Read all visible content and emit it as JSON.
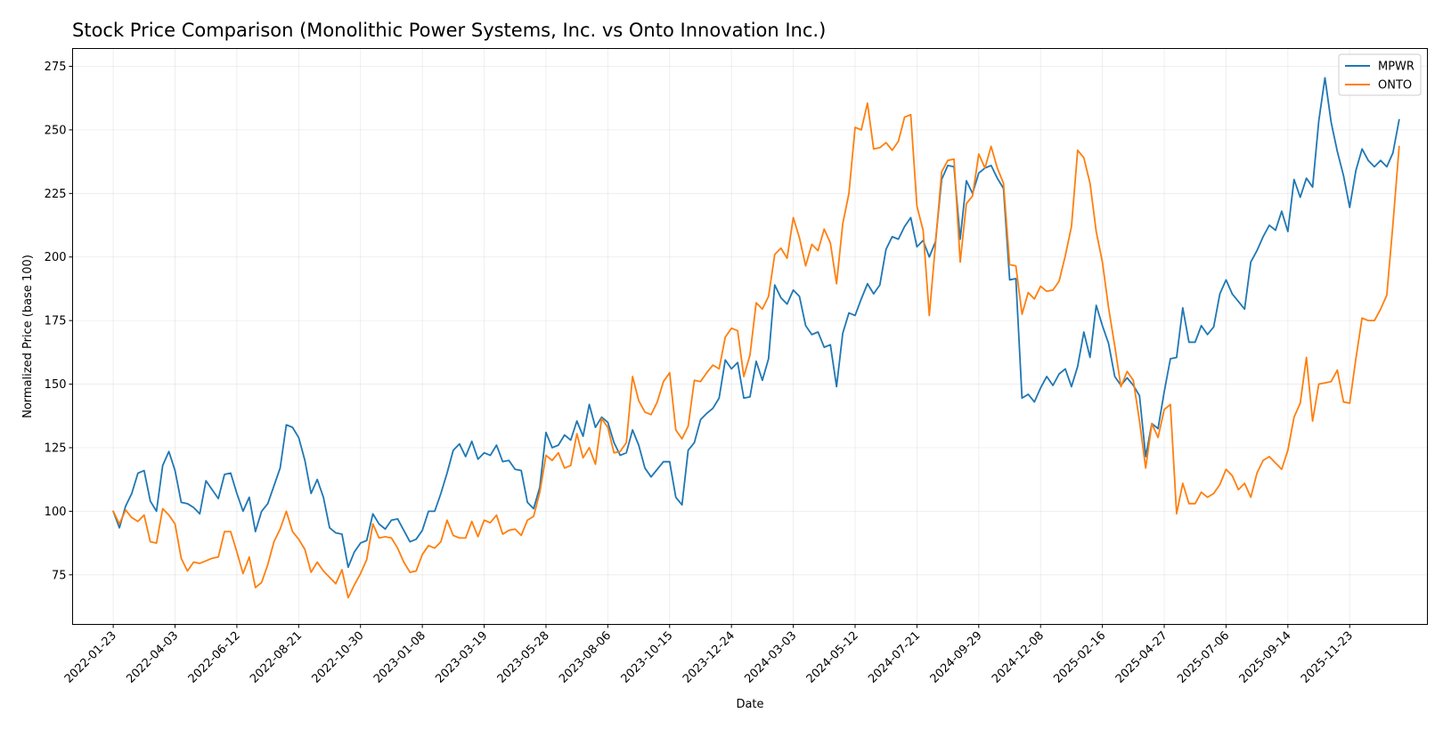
{
  "chart_data": {
    "type": "line",
    "title": "Stock Price Comparison (Monolithic Power Systems, Inc. vs Onto Innovation Inc.)",
    "xlabel": "Date",
    "ylabel": "Normalized Price (base 100)",
    "xlim": [
      "2021-12-08",
      "2026-02-19"
    ],
    "ylim": [
      55.5,
      282
    ],
    "grid": true,
    "legend_position": "top-right",
    "x_ticks": [
      "2022-01-23",
      "2022-04-03",
      "2022-06-12",
      "2022-08-21",
      "2022-10-30",
      "2023-01-08",
      "2023-03-19",
      "2023-05-28",
      "2023-08-06",
      "2023-10-15",
      "2023-12-24",
      "2024-03-03",
      "2024-05-12",
      "2024-07-21",
      "2024-09-29",
      "2024-12-08",
      "2025-02-16",
      "2025-04-27",
      "2025-07-06",
      "2025-09-14",
      "2025-11-23"
    ],
    "y_ticks": [
      75,
      100,
      125,
      150,
      175,
      200,
      225,
      250,
      275
    ],
    "start_date": "2022-01-23",
    "step_days": 7,
    "series": [
      {
        "name": "MPWR",
        "color": "#1f77b4",
        "values": [
          100,
          93.5,
          102,
          107,
          115,
          116,
          104,
          100,
          118,
          123.5,
          116,
          103.5,
          103,
          101.5,
          99,
          112,
          108.5,
          105,
          114.5,
          115,
          107,
          100,
          105.5,
          92,
          100,
          103,
          110,
          117,
          134,
          133,
          129,
          120,
          107,
          112.5,
          105.5,
          93.5,
          91.5,
          91,
          78,
          84,
          87.5,
          88.5,
          99,
          95,
          93,
          96.5,
          97,
          92.5,
          88,
          89,
          92.5,
          100,
          100,
          107,
          115,
          124,
          126.5,
          121.5,
          127.5,
          120.5,
          123,
          122,
          126,
          119.5,
          120,
          116.5,
          116,
          103.5,
          101,
          109.5,
          131,
          125,
          126,
          130,
          128,
          135.5,
          129.5,
          142,
          133,
          137,
          135,
          127,
          122,
          123,
          132,
          126,
          117,
          113.5,
          116.5,
          119.5,
          119.5,
          105.5,
          102.5,
          124,
          127,
          136,
          138.5,
          140.5,
          144.5,
          159.5,
          156,
          158.5,
          144.5,
          145,
          159,
          151.5,
          160,
          189,
          184,
          181.5,
          187,
          184.5,
          173,
          169.5,
          170.5,
          164.5,
          165.5,
          149,
          170,
          178,
          177,
          183.5,
          189.5,
          185.5,
          189,
          203,
          208,
          207,
          212,
          215.5,
          204,
          206.5,
          200,
          206,
          230.5,
          236,
          235.5,
          207,
          230,
          225,
          233,
          235,
          236,
          231,
          227,
          191,
          191.5,
          144.5,
          146,
          143,
          148.5,
          153,
          149.5,
          154,
          156,
          149,
          157,
          170.5,
          160.5,
          181,
          173,
          166,
          153,
          149.5,
          152.5,
          149.5,
          145.5,
          121.5,
          134.5,
          132.5,
          147,
          160,
          160.5,
          180,
          166.5,
          166.5,
          173,
          169.5,
          172.5,
          185.5,
          191,
          185.5,
          182.5,
          179.5,
          198,
          202.5,
          208,
          212.5,
          210.5,
          218,
          210,
          230.5,
          223.5,
          231,
          227.5,
          253.5,
          270.5,
          253,
          241.5,
          232,
          219.5,
          234,
          242.5,
          238,
          235.5,
          238,
          235.5,
          241,
          254
        ]
      },
      {
        "name": "ONTO",
        "color": "#ff7f0e",
        "values": [
          100,
          95,
          100.5,
          97.5,
          96,
          98.5,
          88,
          87.5,
          101,
          98.5,
          95,
          81.5,
          76.5,
          80,
          79.5,
          80.5,
          81.5,
          82,
          92,
          92,
          84,
          75.5,
          82,
          70,
          72,
          79,
          88,
          93,
          100,
          92,
          89,
          85,
          76,
          80,
          76.5,
          74,
          71.5,
          77,
          66,
          71,
          75.5,
          81,
          95,
          89.5,
          90,
          89.5,
          85.5,
          80,
          76,
          76.5,
          83,
          86.5,
          85.5,
          88,
          96.5,
          90.5,
          89.5,
          89.5,
          96,
          90,
          96.5,
          95.5,
          98.5,
          91,
          92.5,
          93,
          90.5,
          96.5,
          98,
          107.5,
          122,
          120,
          123,
          117,
          118,
          130.5,
          121,
          125,
          118.5,
          136.5,
          133,
          123,
          123.5,
          127,
          153,
          143.5,
          139,
          138,
          143,
          151,
          154.5,
          132,
          128.5,
          133.5,
          151.5,
          151,
          154.5,
          157.5,
          156,
          168.5,
          172,
          171,
          153,
          161.5,
          182,
          179.5,
          184.5,
          201,
          203.5,
          199.5,
          215.5,
          207.5,
          196.5,
          205,
          202.5,
          211,
          205.5,
          189.5,
          213,
          225,
          251,
          250,
          260.5,
          242.5,
          243,
          245,
          242,
          245.5,
          255,
          256,
          220,
          210.5,
          177,
          205,
          233.5,
          238,
          238.5,
          198,
          221,
          224,
          240.5,
          235,
          243.5,
          235,
          229,
          197,
          196.5,
          177.5,
          186,
          183.5,
          188.5,
          186.5,
          187,
          190.5,
          200.5,
          212,
          242,
          239,
          229,
          210,
          198,
          180,
          165,
          149,
          155,
          151.5,
          135.5,
          117,
          134.5,
          129,
          140,
          142,
          99,
          111,
          103,
          103,
          107.5,
          105.5,
          107,
          110.5,
          116.5,
          114,
          108.5,
          111,
          105.5,
          115,
          120,
          121.5,
          119,
          116.5,
          124,
          137,
          142.5,
          160.5,
          135.5,
          150,
          150.5,
          151,
          155.5,
          143,
          142.5,
          160,
          176,
          175,
          175,
          179.5,
          185,
          213,
          243.5
        ]
      }
    ]
  }
}
